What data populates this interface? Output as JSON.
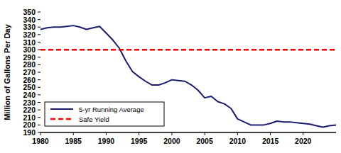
{
  "chart_data": {
    "type": "line",
    "y_label": "Million of Gallons Per Day",
    "x": [
      1980,
      1981,
      1982,
      1983,
      1984,
      1985,
      1986,
      1987,
      1988,
      1989,
      1990,
      1991,
      1992,
      1993,
      1994,
      1995,
      1996,
      1997,
      1998,
      1999,
      2000,
      2001,
      2002,
      2003,
      2004,
      2005,
      2006,
      2007,
      2008,
      2009,
      2010,
      2011,
      2012,
      2013,
      2014,
      2015,
      2016,
      2017,
      2018,
      2019,
      2020,
      2021,
      2022,
      2023,
      2024,
      2025
    ],
    "series": [
      {
        "name": "5-yr Running Average",
        "color": "#1b1b72",
        "line_style": "solid",
        "values": [
          327,
          329,
          330,
          330,
          331,
          332,
          330,
          327,
          329,
          331,
          322,
          313,
          302,
          285,
          271,
          264,
          258,
          253,
          253,
          256,
          260,
          259,
          258,
          253,
          246,
          236,
          238,
          231,
          228,
          222,
          208,
          204,
          200,
          200,
          200,
          202,
          205,
          204,
          204,
          203,
          202,
          201,
          199,
          197,
          199,
          200
        ]
      },
      {
        "name": "Safe Yield",
        "color": "#ff0000",
        "line_style": "dashed",
        "values": [
          300,
          300,
          300,
          300,
          300,
          300,
          300,
          300,
          300,
          300,
          300,
          300,
          300,
          300,
          300,
          300,
          300,
          300,
          300,
          300,
          300,
          300,
          300,
          300,
          300,
          300,
          300,
          300,
          300,
          300,
          300,
          300,
          300,
          300,
          300,
          300,
          300,
          300,
          300,
          300,
          300,
          300,
          300,
          300,
          300,
          300
        ]
      }
    ],
    "xlim": [
      1980,
      2025
    ],
    "xticks": [
      1980,
      1985,
      1990,
      1995,
      2000,
      2005,
      2010,
      2015,
      2020
    ],
    "ylim": [
      190,
      350
    ],
    "yticks": [
      190,
      200,
      210,
      220,
      230,
      240,
      250,
      260,
      270,
      280,
      290,
      300,
      310,
      320,
      330,
      340,
      350
    ],
    "grid": false,
    "legend": "lower left"
  }
}
